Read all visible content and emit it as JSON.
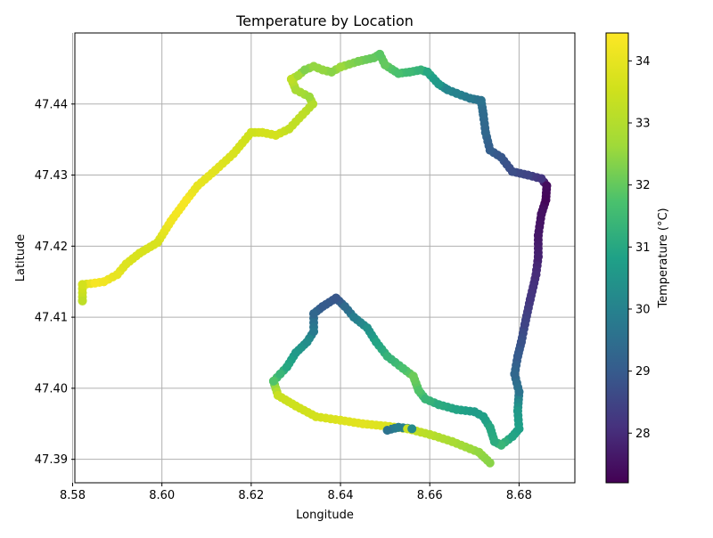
{
  "chart_data": {
    "type": "scatter",
    "title": "Temperature by Location",
    "xlabel": "Longitude",
    "ylabel": "Latitude",
    "xlim": [
      8.5805,
      8.6925
    ],
    "ylim": [
      47.3867,
      47.45
    ],
    "xticks": [
      "8.58",
      "8.60",
      "8.62",
      "8.64",
      "8.66",
      "8.68"
    ],
    "yticks": [
      "47.39",
      "47.40",
      "47.41",
      "47.42",
      "47.43",
      "47.44"
    ],
    "grid": true,
    "colormap": "viridis",
    "colorbar": {
      "label": "Temperature (°C)",
      "range": [
        27.2,
        34.45
      ],
      "ticks": [
        "28",
        "29",
        "30",
        "31",
        "32",
        "33",
        "34"
      ]
    },
    "points": [
      [
        8.5822,
        47.4123,
        33.2
      ],
      [
        8.5822,
        47.4146,
        33.6
      ],
      [
        8.585,
        47.4148,
        34.3
      ],
      [
        8.587,
        47.415,
        34.2
      ],
      [
        8.59,
        47.416,
        34.0
      ],
      [
        8.592,
        47.4175,
        33.8
      ],
      [
        8.595,
        47.419,
        33.7
      ],
      [
        8.599,
        47.4205,
        33.7
      ],
      [
        8.602,
        47.4235,
        34.2
      ],
      [
        8.6055,
        47.4265,
        34.3
      ],
      [
        8.608,
        47.4285,
        34.0
      ],
      [
        8.612,
        47.4307,
        33.9
      ],
      [
        8.616,
        47.433,
        33.7
      ],
      [
        8.62,
        47.436,
        33.5
      ],
      [
        8.6225,
        47.436,
        33.6
      ],
      [
        8.6255,
        47.4356,
        33.6
      ],
      [
        8.6285,
        47.4365,
        33.3
      ],
      [
        8.6315,
        47.4385,
        33.2
      ],
      [
        8.6338,
        47.44,
        33.0
      ],
      [
        8.633,
        47.441,
        32.6
      ],
      [
        8.63,
        47.442,
        32.8
      ],
      [
        8.629,
        47.4435,
        33.2
      ],
      [
        8.6305,
        47.444,
        32.7
      ],
      [
        8.632,
        47.4448,
        32.3
      ],
      [
        8.634,
        47.4453,
        32.5
      ],
      [
        8.636,
        47.4448,
        32.5
      ],
      [
        8.638,
        47.4445,
        32.4
      ],
      [
        8.64,
        47.4452,
        32.6
      ],
      [
        8.644,
        47.446,
        32.2
      ],
      [
        8.6475,
        47.4465,
        32.0
      ],
      [
        8.6488,
        47.447,
        31.9
      ],
      [
        8.65,
        47.4455,
        32.0
      ],
      [
        8.653,
        47.4443,
        31.7
      ],
      [
        8.6555,
        47.4445,
        31.5
      ],
      [
        8.658,
        47.4448,
        31.3
      ],
      [
        8.6595,
        47.4445,
        31.0
      ],
      [
        8.662,
        47.4428,
        30.6
      ],
      [
        8.664,
        47.442,
        30.1
      ],
      [
        8.666,
        47.4415,
        30.0
      ],
      [
        8.669,
        47.4408,
        29.8
      ],
      [
        8.6715,
        47.4405,
        29.6
      ],
      [
        8.672,
        47.4385,
        29.4
      ],
      [
        8.6725,
        47.436,
        29.3
      ],
      [
        8.6735,
        47.4335,
        29.1
      ],
      [
        8.676,
        47.4325,
        28.9
      ],
      [
        8.6785,
        47.4305,
        28.7
      ],
      [
        8.682,
        47.43,
        28.5
      ],
      [
        8.685,
        47.4295,
        28.2
      ],
      [
        8.6862,
        47.4285,
        27.4
      ],
      [
        8.686,
        47.4265,
        27.3
      ],
      [
        8.685,
        47.4245,
        27.5
      ],
      [
        8.6843,
        47.4215,
        27.6
      ],
      [
        8.6843,
        47.4185,
        27.8
      ],
      [
        8.6838,
        47.416,
        28.0
      ],
      [
        8.6825,
        47.4125,
        28.2
      ],
      [
        8.6813,
        47.409,
        28.5
      ],
      [
        8.6805,
        47.4065,
        28.8
      ],
      [
        8.6797,
        47.4045,
        29.0
      ],
      [
        8.679,
        47.402,
        29.3
      ],
      [
        8.68,
        47.3995,
        29.6
      ],
      [
        8.6797,
        47.3968,
        30.6
      ],
      [
        8.68,
        47.3943,
        30.8
      ],
      [
        8.6785,
        47.3932,
        30.9
      ],
      [
        8.676,
        47.392,
        31.4
      ],
      [
        8.6745,
        47.3925,
        31.1
      ],
      [
        8.6735,
        47.3945,
        31.0
      ],
      [
        8.672,
        47.396,
        30.8
      ],
      [
        8.67,
        47.3967,
        30.7
      ],
      [
        8.666,
        47.397,
        30.9
      ],
      [
        8.662,
        47.3977,
        31.1
      ],
      [
        8.659,
        47.3985,
        31.4
      ],
      [
        8.6575,
        47.3997,
        31.8
      ],
      [
        8.6563,
        47.4017,
        32.1
      ],
      [
        8.654,
        47.4028,
        31.7
      ],
      [
        8.6505,
        47.4045,
        31.3
      ],
      [
        8.648,
        47.4065,
        30.9
      ],
      [
        8.646,
        47.4085,
        30.4
      ],
      [
        8.643,
        47.41,
        29.9
      ],
      [
        8.641,
        47.4115,
        29.4
      ],
      [
        8.639,
        47.4127,
        28.9
      ],
      [
        8.636,
        47.4115,
        29.0
      ],
      [
        8.634,
        47.4105,
        29.3
      ],
      [
        8.634,
        47.408,
        29.8
      ],
      [
        8.6325,
        47.4065,
        30.3
      ],
      [
        8.63,
        47.405,
        30.6
      ],
      [
        8.628,
        47.403,
        31.0
      ],
      [
        8.6265,
        47.402,
        31.4
      ],
      [
        8.625,
        47.401,
        31.8
      ],
      [
        8.626,
        47.399,
        33.4
      ],
      [
        8.63,
        47.3975,
        33.5
      ],
      [
        8.6345,
        47.396,
        33.6
      ],
      [
        8.64,
        47.3955,
        33.8
      ],
      [
        8.645,
        47.395,
        33.9
      ],
      [
        8.65,
        47.3947,
        33.8
      ],
      [
        8.655,
        47.3943,
        33.4
      ],
      [
        8.66,
        47.3935,
        33.1
      ],
      [
        8.665,
        47.3925,
        32.8
      ],
      [
        8.669,
        47.3915,
        32.6
      ],
      [
        8.671,
        47.391,
        32.5
      ],
      [
        8.6735,
        47.3895,
        32.4
      ],
      [
        8.6505,
        47.3941,
        29.6
      ],
      [
        8.653,
        47.3945,
        29.9
      ],
      [
        8.656,
        47.3943,
        30.2
      ]
    ]
  }
}
